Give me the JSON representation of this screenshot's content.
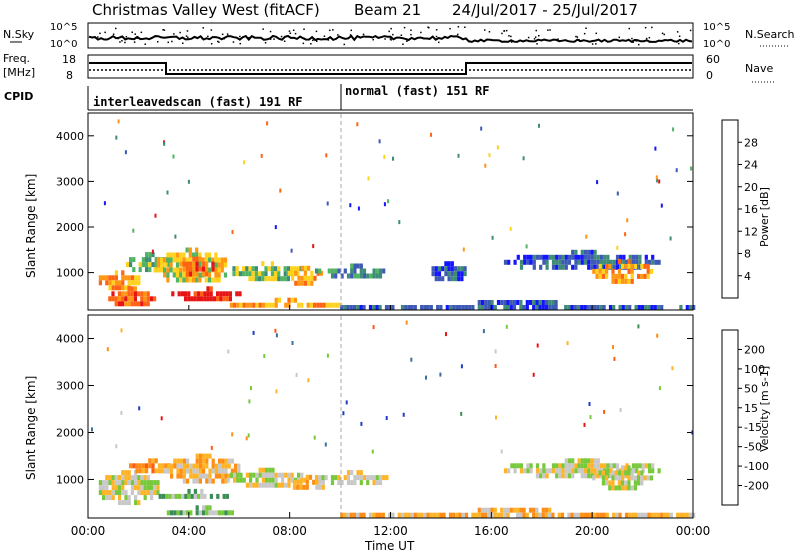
{
  "header": {
    "station": "Christmas Valley West (fitACF)",
    "beam": "Beam 21",
    "date_range": "24/Jul/2017 - 25/Jul/2017"
  },
  "nsky_panel": {
    "left_label": "N.Sky",
    "left_ticks": [
      "10^5",
      "10^0"
    ],
    "right_label": "N.Search",
    "right_ticks": [
      "10^5",
      "10^0"
    ]
  },
  "freq_panel": {
    "left_label_1": "Freq.",
    "left_label_2": "[MHz]",
    "left_ticks": [
      "18",
      "8"
    ],
    "right_label": "Nave",
    "right_ticks": [
      "60",
      "0"
    ]
  },
  "cpid": {
    "label": "CPID",
    "modes": [
      {
        "name": "interleavedscan (fast) 191 RF",
        "start_hour": 0
      },
      {
        "name": "normal (fast) 151 RF",
        "start_hour": 10
      }
    ]
  },
  "chart_data": [
    {
      "type": "heatmap",
      "quantity": "Power",
      "colorbar_label": "Power [dB]",
      "colorbar_ticks": [
        "4",
        "8",
        "12",
        "16",
        "20",
        "24",
        "28"
      ],
      "colorbar_colors": [
        "#1414ff",
        "#3e5ab4",
        "#3e8c78",
        "#50b464",
        "#ffd21e",
        "#ff9614",
        "#ff6414",
        "#e61414"
      ],
      "ylabel": "Slant Range [km]",
      "yticks": [
        1000,
        2000,
        3000,
        4000
      ],
      "ylim": [
        180,
        4500
      ],
      "xlim": [
        0,
        24
      ],
      "x_unit": "hours UT",
      "regions": [
        {
          "t0": 0.3,
          "t1": 2.0,
          "r0": 700,
          "r1": 1050,
          "level": 5
        },
        {
          "t0": 0.8,
          "t1": 2.6,
          "r0": 300,
          "r1": 700,
          "level": 6
        },
        {
          "t0": 1.5,
          "t1": 3.2,
          "r0": 1050,
          "r1": 1450,
          "level": 3
        },
        {
          "t0": 2.6,
          "t1": 5.6,
          "r0": 800,
          "r1": 1550,
          "level": 4
        },
        {
          "t0": 3.5,
          "t1": 5.0,
          "r0": 1000,
          "r1": 1350,
          "level": 6
        },
        {
          "t0": 3.3,
          "t1": 6.0,
          "r0": 450,
          "r1": 700,
          "level": 7
        },
        {
          "t0": 5.6,
          "t1": 8.6,
          "r0": 900,
          "r1": 1250,
          "level": 3
        },
        {
          "t0": 7.8,
          "t1": 9.3,
          "r0": 800,
          "r1": 1150,
          "level": 5
        },
        {
          "t0": 9.0,
          "t1": 12.0,
          "r0": 950,
          "r1": 1200,
          "level": 2
        },
        {
          "t0": 5.5,
          "t1": 10.0,
          "r0": 280,
          "r1": 450,
          "level": 5
        },
        {
          "t0": 10.0,
          "t1": 24.0,
          "r0": 200,
          "r1": 400,
          "level": 1
        },
        {
          "t0": 13.5,
          "t1": 15.0,
          "r0": 850,
          "r1": 1250,
          "level": 1
        },
        {
          "t0": 16.5,
          "t1": 22.6,
          "r0": 1100,
          "r1": 1500,
          "level": 1
        },
        {
          "t0": 20.0,
          "t1": 22.3,
          "r0": 850,
          "r1": 1300,
          "level": 5
        }
      ]
    },
    {
      "type": "heatmap",
      "quantity": "Velocity",
      "colorbar_label": "Velocity [m s-1]",
      "colorbar_ticks": [
        "200",
        "100",
        "50",
        "15",
        "-15",
        "-50",
        "-100",
        "-200"
      ],
      "colorbar_colors": [
        "#1e3cc8",
        "#3c6ea0",
        "#3c8c5a",
        "#78c83c",
        "#c8c8c8",
        "#ffb428",
        "#ff8c14",
        "#ff5a14",
        "#e61414"
      ],
      "ylabel": "Slant Range [km]",
      "yticks": [
        1000,
        2000,
        3000,
        4000
      ],
      "ylim": [
        180,
        4500
      ],
      "xlabel": "Time UT",
      "xticks": [
        "00:00",
        "04:00",
        "08:00",
        "12:00",
        "16:00",
        "20:00",
        "00:00"
      ],
      "xlim": [
        0,
        24
      ],
      "x_unit": "hours UT",
      "regions": [
        {
          "t0": 0.3,
          "t1": 2.8,
          "r0": 550,
          "r1": 1200,
          "level": 4
        },
        {
          "t0": 1.5,
          "t1": 3.5,
          "r0": 1200,
          "r1": 1450,
          "level": 6
        },
        {
          "t0": 3.0,
          "t1": 6.0,
          "r0": 950,
          "r1": 1550,
          "level": 5
        },
        {
          "t0": 2.8,
          "t1": 5.5,
          "r0": 600,
          "r1": 800,
          "level": 3
        },
        {
          "t0": 3.0,
          "t1": 6.0,
          "r0": 300,
          "r1": 450,
          "level": 3
        },
        {
          "t0": 5.5,
          "t1": 8.6,
          "r0": 900,
          "r1": 1250,
          "level": 4
        },
        {
          "t0": 8.0,
          "t1": 9.4,
          "r0": 800,
          "r1": 1100,
          "level": 5
        },
        {
          "t0": 9.0,
          "t1": 12.0,
          "r0": 950,
          "r1": 1200,
          "level": 4
        },
        {
          "t0": 10.0,
          "t1": 24.0,
          "r0": 200,
          "r1": 400,
          "level": 5
        },
        {
          "t0": 16.5,
          "t1": 22.6,
          "r0": 1100,
          "r1": 1450,
          "level": 4
        },
        {
          "t0": 20.0,
          "t1": 22.3,
          "r0": 850,
          "r1": 1300,
          "level": 4
        }
      ]
    }
  ]
}
